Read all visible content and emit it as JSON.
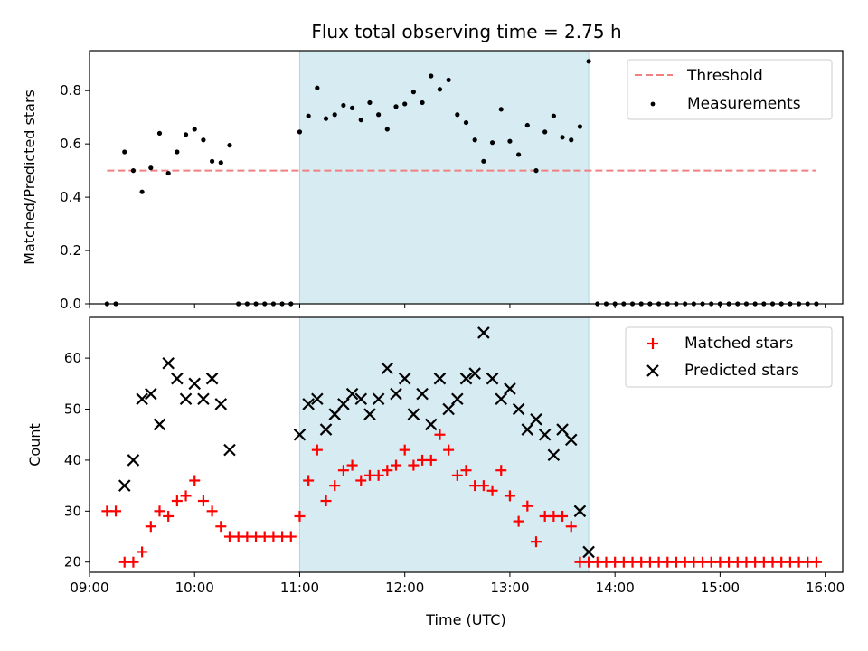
{
  "chart_data": [
    {
      "type": "scatter",
      "title": "Flux total observing time = 2.75 h",
      "xlabel": "",
      "ylabel": "Matched/Predicted stars",
      "xlim": [
        "09:00",
        "16:10"
      ],
      "ylim": [
        0,
        0.95
      ],
      "yticks": [
        "0.0",
        "0.2",
        "0.4",
        "0.6",
        "0.8"
      ],
      "grid": false,
      "legend_position": "top-right",
      "highlight_span": [
        "11:00",
        "13:45"
      ],
      "threshold": {
        "name": "Threshold",
        "value": 0.5,
        "x_range": [
          "09:10",
          "15:55"
        ],
        "color": "#f08080",
        "style": "dashed"
      },
      "series": [
        {
          "name": "Measurements",
          "marker": "dot",
          "color": "#000000",
          "x": [
            "09:10",
            "09:15",
            "09:20",
            "09:25",
            "09:30",
            "09:35",
            "09:40",
            "09:45",
            "09:50",
            "09:55",
            "10:00",
            "10:05",
            "10:10",
            "10:15",
            "10:20",
            "10:25",
            "10:30",
            "10:35",
            "10:40",
            "10:45",
            "10:50",
            "10:55",
            "11:00",
            "11:05",
            "11:10",
            "11:15",
            "11:20",
            "11:25",
            "11:30",
            "11:35",
            "11:40",
            "11:45",
            "11:50",
            "11:55",
            "12:00",
            "12:05",
            "12:10",
            "12:15",
            "12:20",
            "12:25",
            "12:30",
            "12:35",
            "12:40",
            "12:45",
            "12:50",
            "12:55",
            "13:00",
            "13:05",
            "13:10",
            "13:15",
            "13:20",
            "13:25",
            "13:30",
            "13:35",
            "13:40",
            "13:45",
            "13:50",
            "13:55",
            "14:00",
            "14:05",
            "14:10",
            "14:15",
            "14:20",
            "14:25",
            "14:30",
            "14:35",
            "14:40",
            "14:45",
            "14:50",
            "14:55",
            "15:00",
            "15:05",
            "15:10",
            "15:15",
            "15:20",
            "15:25",
            "15:30",
            "15:35",
            "15:40",
            "15:45",
            "15:50",
            "15:55"
          ],
          "y": [
            0,
            0,
            0.57,
            0.5,
            0.42,
            0.51,
            0.64,
            0.49,
            0.57,
            0.635,
            0.655,
            0.615,
            0.535,
            0.53,
            0.595,
            0,
            0,
            0,
            0,
            0,
            0,
            0,
            0.645,
            0.705,
            0.81,
            0.695,
            0.71,
            0.745,
            0.735,
            0.69,
            0.755,
            0.71,
            0.655,
            0.74,
            0.75,
            0.795,
            0.755,
            0.855,
            0.805,
            0.84,
            0.71,
            0.68,
            0.615,
            0.535,
            0.605,
            0.73,
            0.61,
            0.56,
            0.67,
            0.5,
            0.645,
            0.705,
            0.625,
            0.615,
            0.665,
            0.91,
            0,
            0,
            0,
            0,
            0,
            0,
            0,
            0,
            0,
            0,
            0,
            0,
            0,
            0,
            0,
            0,
            0,
            0,
            0,
            0,
            0,
            0,
            0,
            0,
            0,
            0
          ]
        }
      ]
    },
    {
      "type": "scatter",
      "title": "",
      "xlabel": "Time (UTC)",
      "ylabel": "Count",
      "xlim": [
        "09:00",
        "16:10"
      ],
      "ylim": [
        18,
        68
      ],
      "xticks": [
        "09:00",
        "10:00",
        "11:00",
        "12:00",
        "13:00",
        "14:00",
        "15:00",
        "16:00"
      ],
      "yticks": [
        "20",
        "30",
        "40",
        "50",
        "60"
      ],
      "grid": false,
      "legend_position": "top-right",
      "highlight_span": [
        "11:00",
        "13:45"
      ],
      "series": [
        {
          "name": "Matched stars",
          "marker": "plus",
          "color": "#ff0000",
          "x": [
            "09:10",
            "09:15",
            "09:20",
            "09:25",
            "09:30",
            "09:35",
            "09:40",
            "09:45",
            "09:50",
            "09:55",
            "10:00",
            "10:05",
            "10:10",
            "10:15",
            "10:20",
            "10:25",
            "10:30",
            "10:35",
            "10:40",
            "10:45",
            "10:50",
            "10:55",
            "11:00",
            "11:05",
            "11:10",
            "11:15",
            "11:20",
            "11:25",
            "11:30",
            "11:35",
            "11:40",
            "11:45",
            "11:50",
            "11:55",
            "12:00",
            "12:05",
            "12:10",
            "12:15",
            "12:20",
            "12:25",
            "12:30",
            "12:35",
            "12:40",
            "12:45",
            "12:50",
            "12:55",
            "13:00",
            "13:05",
            "13:10",
            "13:15",
            "13:20",
            "13:25",
            "13:30",
            "13:35",
            "13:40",
            "13:45",
            "13:50",
            "13:55",
            "14:00",
            "14:05",
            "14:10",
            "14:15",
            "14:20",
            "14:25",
            "14:30",
            "14:35",
            "14:40",
            "14:45",
            "14:50",
            "14:55",
            "15:00",
            "15:05",
            "15:10",
            "15:15",
            "15:20",
            "15:25",
            "15:30",
            "15:35",
            "15:40",
            "15:45",
            "15:50",
            "15:55"
          ],
          "y": [
            30,
            30,
            20,
            20,
            22,
            27,
            30,
            29,
            32,
            33,
            36,
            32,
            30,
            27,
            25,
            25,
            25,
            25,
            25,
            25,
            25,
            25,
            29,
            36,
            42,
            32,
            35,
            38,
            39,
            36,
            37,
            37,
            38,
            39,
            42,
            39,
            40,
            40,
            45,
            42,
            37,
            38,
            35,
            35,
            34,
            38,
            33,
            28,
            31,
            24,
            29,
            29,
            29,
            27,
            20,
            20,
            20,
            20,
            20,
            20,
            20,
            20,
            20,
            20,
            20,
            20,
            20,
            20,
            20,
            20,
            20,
            20,
            20,
            20,
            20,
            20,
            20,
            20,
            20,
            20,
            20,
            20
          ]
        },
        {
          "name": "Predicted stars",
          "marker": "x",
          "color": "#000000",
          "x": [
            "09:20",
            "09:25",
            "09:30",
            "09:35",
            "09:40",
            "09:45",
            "09:50",
            "09:55",
            "10:00",
            "10:05",
            "10:10",
            "10:15",
            "10:20",
            "11:00",
            "11:05",
            "11:10",
            "11:15",
            "11:20",
            "11:25",
            "11:30",
            "11:35",
            "11:40",
            "11:45",
            "11:50",
            "11:55",
            "12:00",
            "12:05",
            "12:10",
            "12:15",
            "12:20",
            "12:25",
            "12:30",
            "12:35",
            "12:40",
            "12:45",
            "12:50",
            "12:55",
            "13:00",
            "13:05",
            "13:10",
            "13:15",
            "13:20",
            "13:25",
            "13:30",
            "13:35",
            "13:40",
            "13:45"
          ],
          "y": [
            35,
            40,
            52,
            53,
            47,
            59,
            56,
            52,
            55,
            52,
            56,
            51,
            42,
            45,
            51,
            52,
            46,
            49,
            51,
            53,
            52,
            49,
            52,
            58,
            53,
            56,
            49,
            53,
            47,
            56,
            50,
            52,
            56,
            57,
            65,
            56,
            52,
            54,
            50,
            46,
            48,
            45,
            41,
            46,
            44,
            30,
            22
          ]
        }
      ]
    }
  ]
}
